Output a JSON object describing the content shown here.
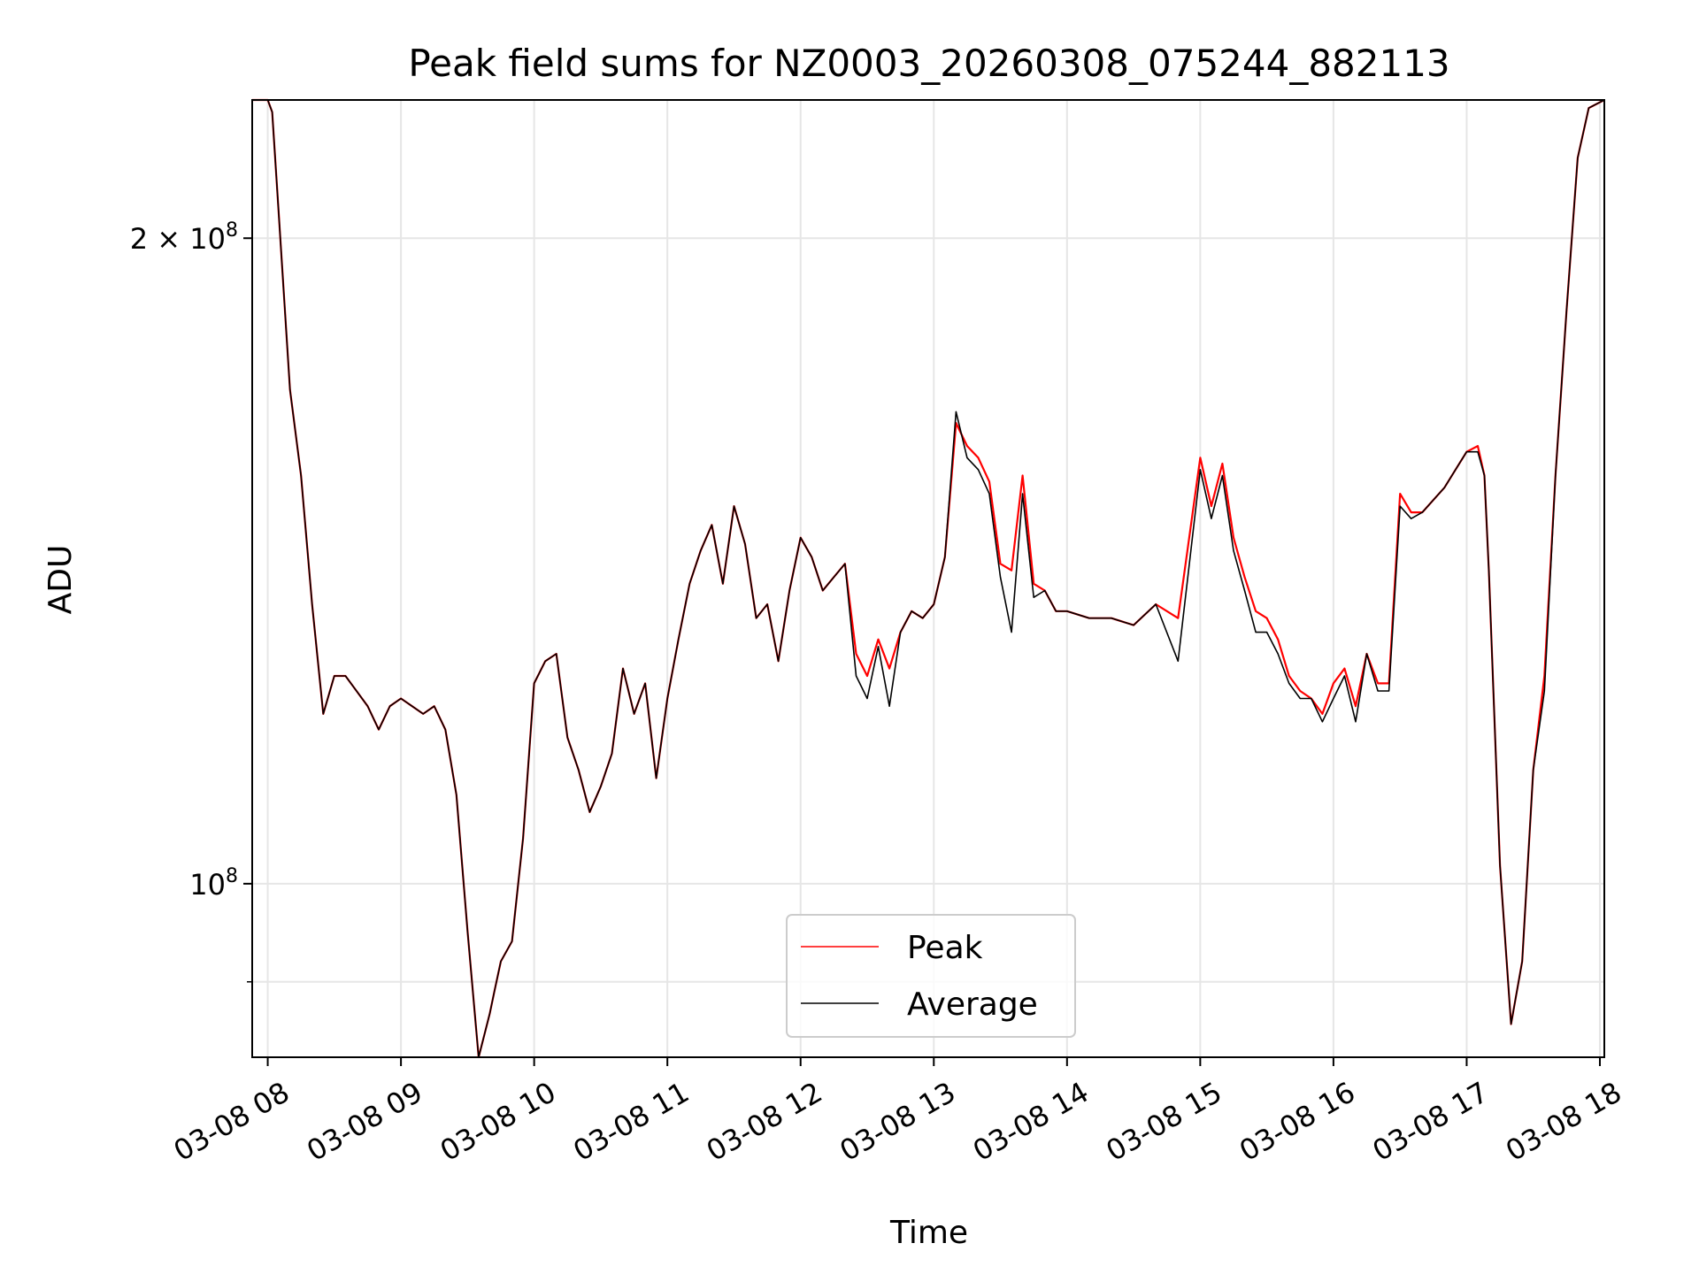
{
  "chart_data": {
    "type": "line",
    "title": "Peak field sums for NZ0003_20260308_075244_882113",
    "xlabel": "Time",
    "ylabel": "ADU",
    "x_scale": "time",
    "y_scale": "log",
    "x_range": [
      "03-08 07:53",
      "03-08 18:02"
    ],
    "ylim": [
      83000000,
      232000000
    ],
    "grid": true,
    "legend_position": "lower-center",
    "x_ticks": [
      "03-08 08",
      "03-08 09",
      "03-08 10",
      "03-08 11",
      "03-08 12",
      "03-08 13",
      "03-08 14",
      "03-08 15",
      "03-08 16",
      "03-08 17",
      "03-08 18"
    ],
    "y_major_ticks": [
      {
        "value": 100000000,
        "mantissa": "",
        "base": "10",
        "exp": "8"
      },
      {
        "value": 200000000,
        "mantissa": "2 × ",
        "base": "10",
        "exp": "8"
      }
    ],
    "y_minor_ticks": [
      90000000
    ],
    "colors": {
      "peak": "#ff0000",
      "average": "#000000",
      "grid": "#e6e6e6"
    },
    "series": [
      {
        "name": "Peak",
        "color": "#ff0000",
        "x": [
          "03-08 07:53",
          "03-08 08:00",
          "03-08 08:02",
          "03-08 08:05",
          "03-08 08:10",
          "03-08 08:15",
          "03-08 08:20",
          "03-08 08:25",
          "03-08 08:30",
          "03-08 08:35",
          "03-08 08:40",
          "03-08 08:45",
          "03-08 08:50",
          "03-08 08:55",
          "03-08 09:00",
          "03-08 09:05",
          "03-08 09:10",
          "03-08 09:15",
          "03-08 09:20",
          "03-08 09:25",
          "03-08 09:30",
          "03-08 09:35",
          "03-08 09:40",
          "03-08 09:42",
          "03-08 09:45",
          "03-08 09:50",
          "03-08 09:55",
          "03-08 10:00",
          "03-08 10:05",
          "03-08 10:10",
          "03-08 10:15",
          "03-08 10:20",
          "03-08 10:25",
          "03-08 10:30",
          "03-08 10:35",
          "03-08 10:40",
          "03-08 10:45",
          "03-08 10:50",
          "03-08 10:55",
          "03-08 11:00",
          "03-08 11:05",
          "03-08 11:10",
          "03-08 11:15",
          "03-08 11:20",
          "03-08 11:25",
          "03-08 11:30",
          "03-08 11:35",
          "03-08 11:40",
          "03-08 11:45",
          "03-08 11:50",
          "03-08 11:55",
          "03-08 12:00",
          "03-08 12:05",
          "03-08 12:10",
          "03-08 12:15",
          "03-08 12:20",
          "03-08 12:25",
          "03-08 12:30",
          "03-08 12:35",
          "03-08 12:40",
          "03-08 12:45",
          "03-08 12:50",
          "03-08 12:55",
          "03-08 13:00",
          "03-08 13:05",
          "03-08 13:10",
          "03-08 13:15",
          "03-08 13:20",
          "03-08 13:25",
          "03-08 13:30",
          "03-08 13:35",
          "03-08 13:40",
          "03-08 13:45",
          "03-08 13:50",
          "03-08 13:55",
          "03-08 14:00",
          "03-08 14:10",
          "03-08 14:20",
          "03-08 14:30",
          "03-08 14:40",
          "03-08 14:50",
          "03-08 15:00",
          "03-08 15:05",
          "03-08 15:10",
          "03-08 15:15",
          "03-08 15:20",
          "03-08 15:25",
          "03-08 15:30",
          "03-08 15:35",
          "03-08 15:40",
          "03-08 15:45",
          "03-08 15:50",
          "03-08 15:55",
          "03-08 16:00",
          "03-08 16:05",
          "03-08 16:10",
          "03-08 16:15",
          "03-08 16:20",
          "03-08 16:25",
          "03-08 16:30",
          "03-08 16:35",
          "03-08 16:40",
          "03-08 16:45",
          "03-08 16:50",
          "03-08 16:55",
          "03-08 17:00",
          "03-08 17:05",
          "03-08 17:08",
          "03-08 17:10",
          "03-08 17:15",
          "03-08 17:20",
          "03-08 17:25",
          "03-08 17:30",
          "03-08 17:35",
          "03-08 17:40",
          "03-08 17:45",
          "03-08 17:50",
          "03-08 17:55",
          "03-08 18:02"
        ],
        "y": [
          232000000,
          232000000,
          229000000,
          205000000,
          170000000,
          155000000,
          135000000,
          120000000,
          125000000,
          125000000,
          123000000,
          121000000,
          118000000,
          121000000,
          122000000,
          121000000,
          120000000,
          121000000,
          118000000,
          110000000,
          95000000,
          83000000,
          87000000,
          89000000,
          92000000,
          94000000,
          105000000,
          124000000,
          127000000,
          128000000,
          117000000,
          113000000,
          108000000,
          111000000,
          115000000,
          126000000,
          120000000,
          124000000,
          112000000,
          122000000,
          130000000,
          138000000,
          143000000,
          147000000,
          138000000,
          150000000,
          144000000,
          133000000,
          135000000,
          127000000,
          137000000,
          145000000,
          142000000,
          137000000,
          139000000,
          141000000,
          128000000,
          125000000,
          130000000,
          126000000,
          131000000,
          134000000,
          133000000,
          135000000,
          142000000,
          164000000,
          160000000,
          158000000,
          154000000,
          141000000,
          140000000,
          155000000,
          138000000,
          137000000,
          134000000,
          134000000,
          133000000,
          133000000,
          132000000,
          135000000,
          133000000,
          158000000,
          150000000,
          157000000,
          145000000,
          139000000,
          134000000,
          133000000,
          130000000,
          125000000,
          123000000,
          122000000,
          120000000,
          124000000,
          126000000,
          121000000,
          128000000,
          124000000,
          124000000,
          152000000,
          149000000,
          149000000,
          151000000,
          153000000,
          156000000,
          159000000,
          160000000,
          155000000,
          140000000,
          102000000,
          86000000,
          92000000,
          113000000,
          125000000,
          155000000,
          185000000,
          218000000,
          230000000,
          232000000
        ]
      },
      {
        "name": "Average",
        "color": "#000000",
        "x": [
          "03-08 07:53",
          "03-08 08:00",
          "03-08 08:02",
          "03-08 08:05",
          "03-08 08:10",
          "03-08 08:15",
          "03-08 08:20",
          "03-08 08:25",
          "03-08 08:30",
          "03-08 08:35",
          "03-08 08:40",
          "03-08 08:45",
          "03-08 08:50",
          "03-08 08:55",
          "03-08 09:00",
          "03-08 09:05",
          "03-08 09:10",
          "03-08 09:15",
          "03-08 09:20",
          "03-08 09:25",
          "03-08 09:30",
          "03-08 09:35",
          "03-08 09:40",
          "03-08 09:42",
          "03-08 09:45",
          "03-08 09:50",
          "03-08 09:55",
          "03-08 10:00",
          "03-08 10:05",
          "03-08 10:10",
          "03-08 10:15",
          "03-08 10:20",
          "03-08 10:25",
          "03-08 10:30",
          "03-08 10:35",
          "03-08 10:40",
          "03-08 10:45",
          "03-08 10:50",
          "03-08 10:55",
          "03-08 11:00",
          "03-08 11:05",
          "03-08 11:10",
          "03-08 11:15",
          "03-08 11:20",
          "03-08 11:25",
          "03-08 11:30",
          "03-08 11:35",
          "03-08 11:40",
          "03-08 11:45",
          "03-08 11:50",
          "03-08 11:55",
          "03-08 12:00",
          "03-08 12:05",
          "03-08 12:10",
          "03-08 12:15",
          "03-08 12:20",
          "03-08 12:25",
          "03-08 12:30",
          "03-08 12:35",
          "03-08 12:40",
          "03-08 12:45",
          "03-08 12:50",
          "03-08 12:55",
          "03-08 13:00",
          "03-08 13:05",
          "03-08 13:10",
          "03-08 13:15",
          "03-08 13:20",
          "03-08 13:25",
          "03-08 13:30",
          "03-08 13:35",
          "03-08 13:40",
          "03-08 13:45",
          "03-08 13:50",
          "03-08 13:55",
          "03-08 14:00",
          "03-08 14:10",
          "03-08 14:20",
          "03-08 14:30",
          "03-08 14:40",
          "03-08 14:50",
          "03-08 15:00",
          "03-08 15:05",
          "03-08 15:10",
          "03-08 15:15",
          "03-08 15:20",
          "03-08 15:25",
          "03-08 15:30",
          "03-08 15:35",
          "03-08 15:40",
          "03-08 15:45",
          "03-08 15:50",
          "03-08 15:55",
          "03-08 16:00",
          "03-08 16:05",
          "03-08 16:10",
          "03-08 16:15",
          "03-08 16:20",
          "03-08 16:25",
          "03-08 16:30",
          "03-08 16:35",
          "03-08 16:40",
          "03-08 16:45",
          "03-08 16:50",
          "03-08 16:55",
          "03-08 17:00",
          "03-08 17:05",
          "03-08 17:08",
          "03-08 17:10",
          "03-08 17:15",
          "03-08 17:20",
          "03-08 17:25",
          "03-08 17:30",
          "03-08 17:35",
          "03-08 17:40",
          "03-08 17:45",
          "03-08 17:50",
          "03-08 17:55",
          "03-08 18:02"
        ],
        "y": [
          232000000,
          232000000,
          229000000,
          205000000,
          170000000,
          155000000,
          135000000,
          120000000,
          125000000,
          125000000,
          123000000,
          121000000,
          118000000,
          121000000,
          122000000,
          121000000,
          120000000,
          121000000,
          118000000,
          110000000,
          95000000,
          83000000,
          87000000,
          89000000,
          92000000,
          94000000,
          105000000,
          124000000,
          127000000,
          128000000,
          117000000,
          113000000,
          108000000,
          111000000,
          115000000,
          126000000,
          120000000,
          124000000,
          112000000,
          122000000,
          130000000,
          138000000,
          143000000,
          147000000,
          138000000,
          150000000,
          144000000,
          133000000,
          135000000,
          127000000,
          137000000,
          145000000,
          142000000,
          137000000,
          139000000,
          141000000,
          125000000,
          122000000,
          129000000,
          121000000,
          131000000,
          134000000,
          133000000,
          135000000,
          142000000,
          166000000,
          158000000,
          156000000,
          152000000,
          139000000,
          131000000,
          152000000,
          136000000,
          137000000,
          134000000,
          134000000,
          133000000,
          133000000,
          132000000,
          135000000,
          127000000,
          156000000,
          148000000,
          155000000,
          143000000,
          137000000,
          131000000,
          131000000,
          128000000,
          124000000,
          122000000,
          122000000,
          119000000,
          122000000,
          125000000,
          119000000,
          128000000,
          123000000,
          123000000,
          150000000,
          148000000,
          149000000,
          151000000,
          153000000,
          156000000,
          159000000,
          159000000,
          155000000,
          140000000,
          102000000,
          86000000,
          92000000,
          113000000,
          123000000,
          155000000,
          185000000,
          218000000,
          230000000,
          232000000
        ]
      }
    ]
  }
}
